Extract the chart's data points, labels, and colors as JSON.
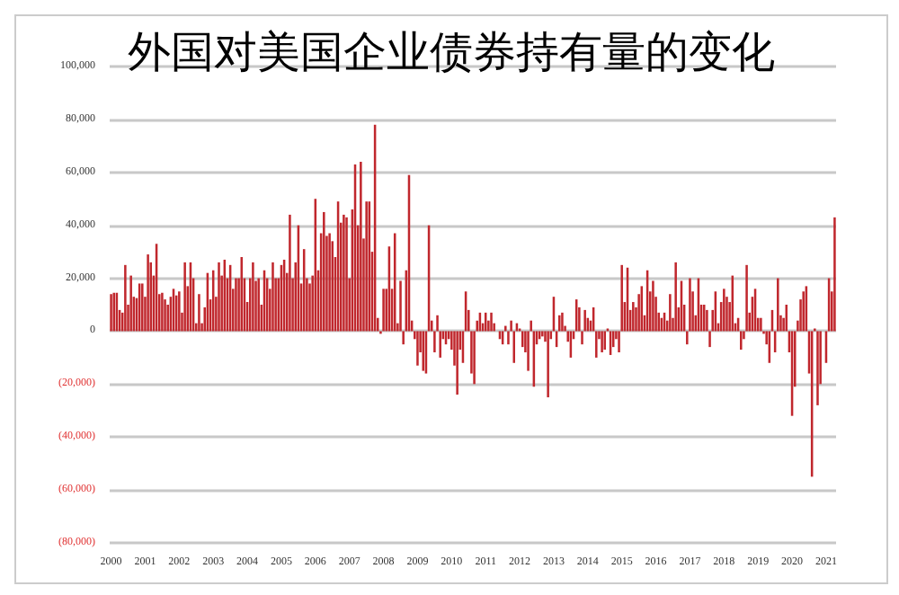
{
  "chart_data": {
    "type": "bar",
    "title": "外国对美国企业债券持有量的变化",
    "categories": [
      "2000",
      null,
      null,
      null,
      null,
      null,
      null,
      null,
      null,
      null,
      null,
      null,
      "2001",
      null,
      null,
      null,
      null,
      null,
      null,
      null,
      null,
      null,
      null,
      null,
      "2002",
      null,
      null,
      null,
      null,
      null,
      null,
      null,
      null,
      null,
      null,
      null,
      "2003",
      null,
      null,
      null,
      null,
      null,
      null,
      null,
      null,
      null,
      null,
      null,
      "2004",
      null,
      null,
      null,
      null,
      null,
      null,
      null,
      null,
      null,
      null,
      null,
      "2005",
      null,
      null,
      null,
      null,
      null,
      null,
      null,
      null,
      null,
      null,
      null,
      "2006",
      null,
      null,
      null,
      null,
      null,
      null,
      null,
      null,
      null,
      null,
      null,
      "2007",
      null,
      null,
      null,
      null,
      null,
      null,
      null,
      null,
      null,
      null,
      null,
      "2008",
      null,
      null,
      null,
      null,
      null,
      null,
      null,
      null,
      null,
      null,
      null,
      "2009",
      null,
      null,
      null,
      null,
      null,
      null,
      null,
      null,
      null,
      null,
      null,
      "2010",
      null,
      null,
      null,
      null,
      null,
      null,
      null,
      null,
      null,
      null,
      null,
      "2011",
      null,
      null,
      null,
      null,
      null,
      null,
      null,
      null,
      null,
      null,
      null,
      "2012",
      null,
      null,
      null,
      null,
      null,
      null,
      null,
      null,
      null,
      null,
      null,
      "2013",
      null,
      null,
      null,
      null,
      null,
      null,
      null,
      null,
      null,
      null,
      null,
      "2014",
      null,
      null,
      null,
      null,
      null,
      null,
      null,
      null,
      null,
      null,
      null,
      "2015",
      null,
      null,
      null,
      null,
      null,
      null,
      null,
      null,
      null,
      null,
      null,
      "2016",
      null,
      null,
      null,
      null,
      null,
      null,
      null,
      null,
      null,
      null,
      null,
      "2017",
      null,
      null,
      null,
      null,
      null,
      null,
      null,
      null,
      null,
      null,
      null,
      "2018",
      null,
      null,
      null,
      null,
      null,
      null,
      null,
      null,
      null,
      null,
      null,
      "2019",
      null,
      null,
      null,
      null,
      null,
      null,
      null,
      null,
      null,
      null,
      null,
      "2020",
      null,
      null,
      null,
      null,
      null,
      null,
      null,
      null,
      null,
      null,
      null,
      "2021",
      null,
      null,
      null
    ],
    "values": [
      14000,
      14500,
      14500,
      8000,
      7000,
      25000,
      10000,
      21000,
      13000,
      12500,
      18000,
      18000,
      13000,
      29000,
      26000,
      21000,
      33000,
      14000,
      14500,
      12000,
      10000,
      13000,
      16000,
      13500,
      15000,
      7000,
      26000,
      17000,
      26000,
      20000,
      3000,
      14000,
      3000,
      9000,
      22000,
      12000,
      23000,
      13000,
      26000,
      21000,
      27000,
      20000,
      25000,
      16000,
      20000,
      20000,
      28000,
      20000,
      11000,
      20000,
      26000,
      19000,
      20000,
      10000,
      23000,
      20000,
      16000,
      26000,
      20000,
      20000,
      25000,
      27000,
      22000,
      44000,
      20000,
      26000,
      40000,
      18000,
      31000,
      20000,
      18000,
      21000,
      50000,
      23000,
      37000,
      45000,
      36000,
      37000,
      34000,
      28000,
      49000,
      41000,
      44000,
      43000,
      20000,
      46000,
      63000,
      40000,
      64000,
      35000,
      49000,
      49000,
      30000,
      78000,
      5000,
      -1000,
      16000,
      16000,
      32000,
      16000,
      37000,
      3000,
      19000,
      -5000,
      23000,
      59000,
      4000,
      -3000,
      -13000,
      -8000,
      -15000,
      -16000,
      40000,
      4000,
      -8000,
      6000,
      -10000,
      -3000,
      -5000,
      -3000,
      -7000,
      -13000,
      -24000,
      -7000,
      -12000,
      15000,
      8000,
      -16000,
      -20000,
      4000,
      7000,
      3000,
      7000,
      4000,
      7000,
      3000,
      0,
      -3000,
      -5000,
      2000,
      -5000,
      4000,
      -12000,
      3000,
      1000,
      -6000,
      -8000,
      -15000,
      4000,
      -21000,
      -5000,
      -3000,
      -2000,
      -4000,
      -25000,
      -3000,
      13000,
      -6000,
      6000,
      7000,
      2000,
      -4000,
      -10000,
      -3000,
      12000,
      9000,
      -5000,
      8000,
      5000,
      4000,
      9000,
      -10000,
      -3000,
      -8000,
      -7000,
      1000,
      -9000,
      -6000,
      -3000,
      -8000,
      25000,
      11000,
      24000,
      8000,
      11000,
      9000,
      14000,
      17000,
      6000,
      23000,
      15000,
      19000,
      13000,
      7000,
      5000,
      7000,
      4000,
      14000,
      5000,
      26000,
      9000,
      19000,
      10000,
      -5000,
      20000,
      15000,
      6000,
      20000,
      10000,
      10000,
      8000,
      -6000,
      8000,
      15000,
      3000,
      11000,
      16000,
      13000,
      11000,
      21000,
      3000,
      5000,
      -7000,
      -3000,
      25000,
      7000,
      13000,
      16000,
      5000,
      5000,
      -1000,
      -5000,
      -12000,
      8000,
      -8000,
      20000,
      6000,
      5000,
      10000,
      -8000,
      -32000,
      -21000,
      4000,
      12000,
      15000,
      17000,
      -16000,
      -55000,
      1000,
      -28000,
      -20000,
      0,
      -12000,
      20000,
      15000,
      43000
    ],
    "color": "#c0272d",
    "ylim": [
      -80000,
      100000
    ],
    "yticks": [
      {
        "value": -80000,
        "label": "(80,000)"
      },
      {
        "value": -60000,
        "label": "(60,000)"
      },
      {
        "value": -40000,
        "label": "(40,000)"
      },
      {
        "value": -20000,
        "label": "(20,000)"
      },
      0,
      {
        "value": 20000,
        "label": "20,000"
      },
      {
        "value": 40000,
        "label": "40,000"
      },
      {
        "value": 60000,
        "label": "60,000"
      },
      {
        "value": 80000,
        "label": "80,000"
      },
      {
        "value": 100000,
        "label": "100,000"
      }
    ],
    "grid": "y"
  }
}
